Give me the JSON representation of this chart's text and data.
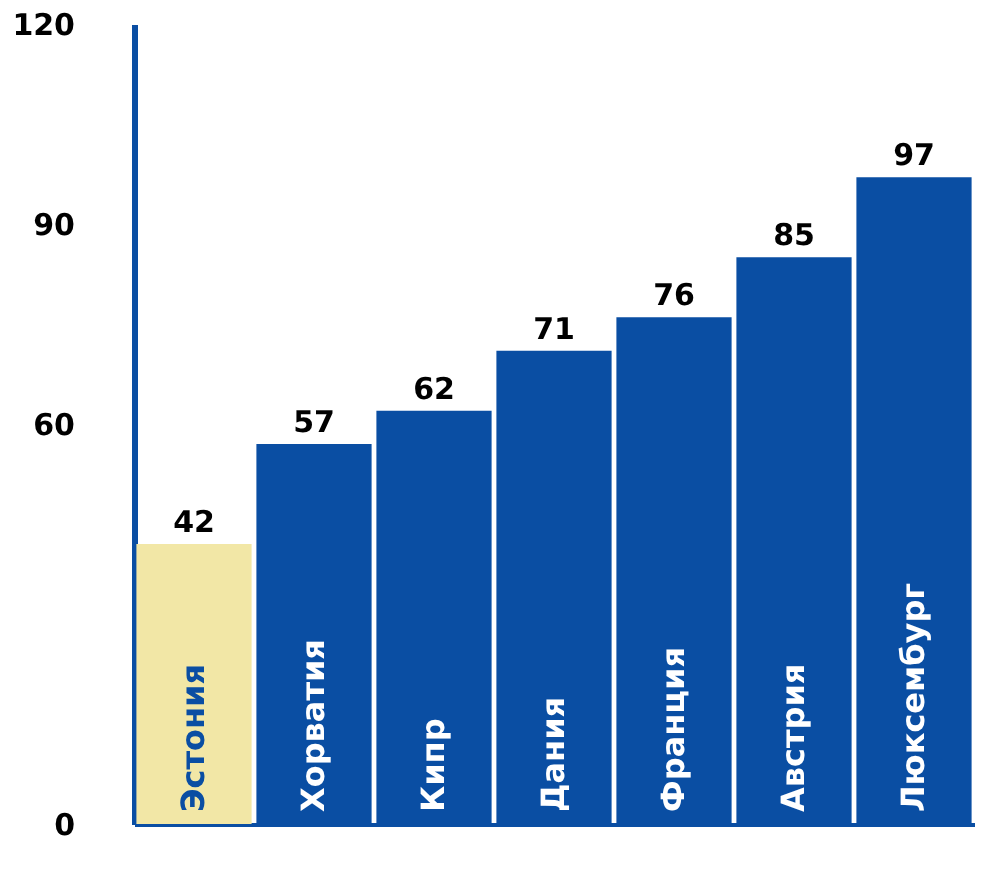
{
  "chart_data": {
    "type": "bar",
    "categories": [
      "Эстония",
      "Хорватия",
      "Кипр",
      "Дания",
      "Франция",
      "Австрия",
      "Люксембург"
    ],
    "values": [
      42,
      57,
      62,
      71,
      76,
      85,
      97
    ],
    "colors": [
      "#f2e7a6",
      "#0a4ea3",
      "#0a4ea3",
      "#0a4ea3",
      "#0a4ea3",
      "#0a4ea3",
      "#0a4ea3"
    ],
    "ylim": [
      0,
      120
    ],
    "yticks": [
      0,
      60,
      90,
      120
    ],
    "data_labels": true,
    "grid": false
  }
}
